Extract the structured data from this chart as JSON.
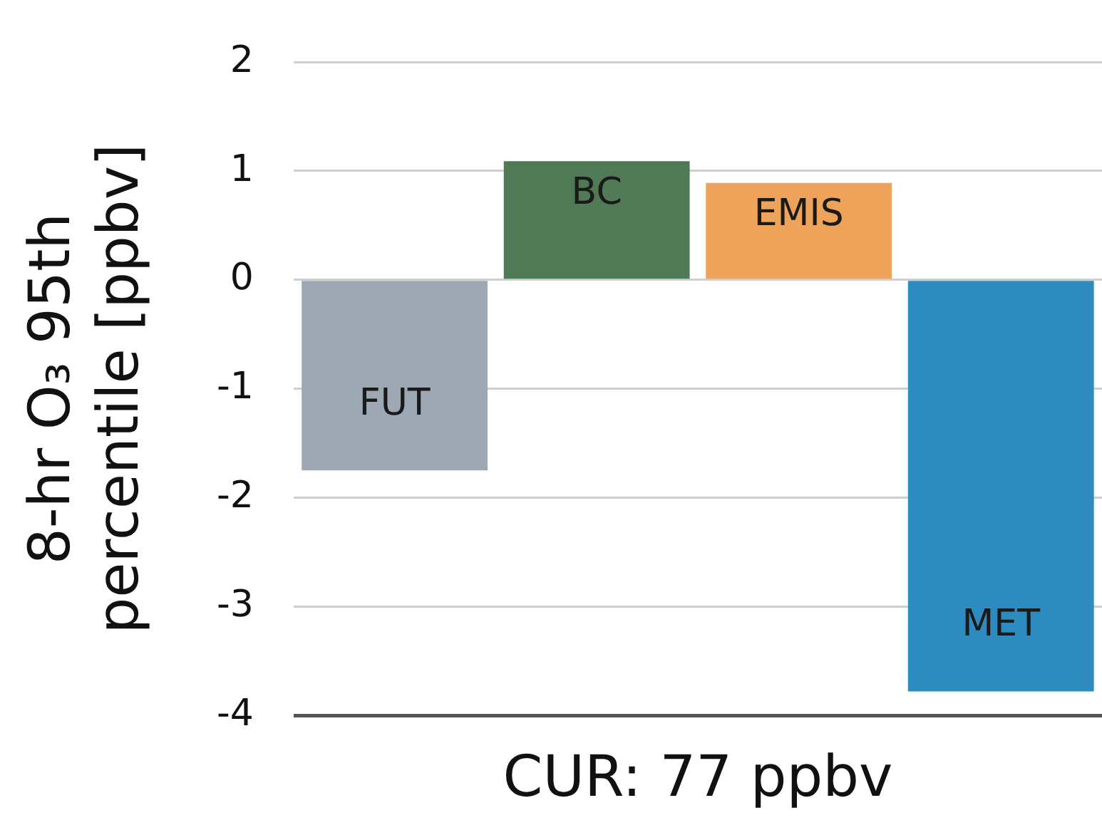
{
  "chart_data": {
    "type": "bar",
    "categories": [
      "FUT",
      "BC",
      "EMIS",
      "MET"
    ],
    "values": [
      -1.75,
      1.09,
      0.89,
      -3.78
    ],
    "colors": [
      "#9ea8b5",
      "#4f7a55",
      "#eda35a",
      "#2e8bc0"
    ],
    "xlabel": "CUR: 77 ppbv",
    "ylabel": "8-hr O₃ 95th percentile [ppbv]",
    "ylim": [
      -4,
      2
    ],
    "yticks": [
      -4,
      -3,
      -2,
      -1,
      0,
      1,
      2
    ],
    "grid": "y",
    "legend": false
  }
}
